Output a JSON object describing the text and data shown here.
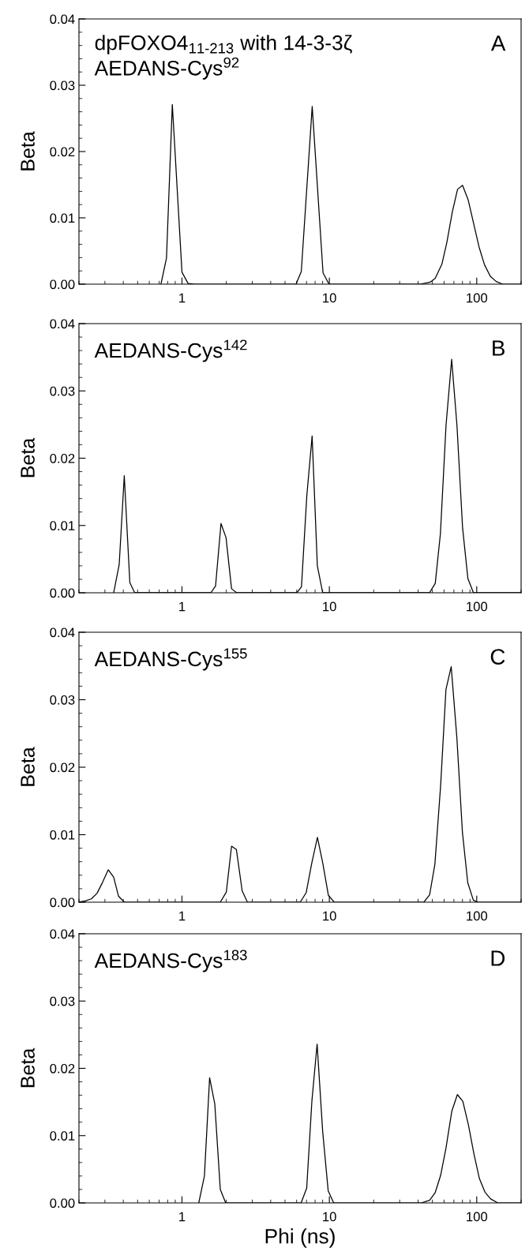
{
  "chart_data": [
    {
      "type": "line",
      "ylabel": "Beta",
      "annotations": [
        "A",
        "dpFOXO4$_{11-213}$ with 14-3-3ζ",
        "AEDANS-Cys$^{92}$"
      ],
      "xlim": [
        0.2,
        200
      ],
      "ylim": [
        0,
        0.04
      ],
      "xticks": [
        1,
        10,
        100
      ],
      "yticks": [
        {
          "value": 0,
          "label": "0.00"
        },
        {
          "value": 0.01,
          "label": "0.01"
        },
        {
          "value": 0.02,
          "label": "0.02"
        },
        {
          "value": 0.03,
          "label": "0.03"
        },
        {
          "value": 0.04,
          "label": "0.04"
        }
      ],
      "log": "x",
      "grid": false,
      "legend": false,
      "marker": "none",
      "line_style": "solid",
      "series": [
        {
          "color": "#000000",
          "x": [
            0.72,
            0.785,
            0.86,
            1.0,
            1.1,
            1.22,
            5.94,
            6.45,
            7.65,
            9.06,
            9.95,
            41.4,
            48.4,
            52.3,
            58,
            62.7,
            68.3,
            74.1,
            80.1,
            87.5,
            95.4,
            103.7,
            113,
            123.6,
            135.5,
            150,
            200
          ],
          "values": [
            0,
            0.0039,
            0.0271,
            0.0018,
            0.0001,
            0,
            0,
            0.0019,
            0.0268,
            0.0017,
            0,
            0,
            0.0003,
            0.0009,
            0.003,
            0.0063,
            0.0109,
            0.0143,
            0.0149,
            0.0127,
            0.0091,
            0.0056,
            0.0029,
            0.0012,
            0.0004,
            0,
            0
          ]
        }
      ]
    },
    {
      "type": "line",
      "ylabel": "Beta",
      "annotations": [
        "B",
        "AEDANS-Cys$^{142}$"
      ],
      "xlim": [
        0.2,
        200
      ],
      "ylim": [
        0,
        0.04
      ],
      "xticks": [
        1,
        10,
        100
      ],
      "yticks": [
        {
          "value": 0,
          "label": "0.00"
        },
        {
          "value": 0.01,
          "label": "0.01"
        },
        {
          "value": 0.02,
          "label": "0.02"
        },
        {
          "value": 0.03,
          "label": "0.03"
        },
        {
          "value": 0.04,
          "label": "0.04"
        }
      ],
      "log": "x",
      "grid": false,
      "legend": false,
      "marker": "none",
      "line_style": "solid",
      "series": [
        {
          "color": "#000000",
          "x": [
            0.344,
            0.375,
            0.406,
            0.443,
            0.478,
            1.57,
            1.69,
            1.84,
            1.99,
            2.17,
            2.35,
            6.02,
            6.47,
            7.03,
            7.64,
            8.29,
            9.01,
            47.8,
            52.3,
            56.7,
            61.9,
            67.6,
            73.4,
            80.2,
            87.1,
            95,
            200
          ],
          "values": [
            0,
            0.0042,
            0.0174,
            0.0015,
            0,
            0,
            0.001,
            0.0103,
            0.0082,
            0.0006,
            0,
            0,
            0.0009,
            0.0144,
            0.0233,
            0.004,
            0,
            0,
            0.0014,
            0.0088,
            0.0249,
            0.0347,
            0.0249,
            0.0096,
            0.0021,
            0,
            0
          ]
        }
      ]
    },
    {
      "type": "line",
      "ylabel": "Beta",
      "annotations": [
        "C",
        "AEDANS-Cys$^{155}$"
      ],
      "xlim": [
        0.2,
        200
      ],
      "ylim": [
        0,
        0.04
      ],
      "xticks": [
        1,
        10,
        100
      ],
      "yticks": [
        {
          "value": 0,
          "label": "0.00"
        },
        {
          "value": 0.01,
          "label": "0.01"
        },
        {
          "value": 0.02,
          "label": "0.02"
        },
        {
          "value": 0.03,
          "label": "0.03"
        },
        {
          "value": 0.04,
          "label": "0.04"
        }
      ],
      "log": "x",
      "grid": false,
      "legend": false,
      "marker": "none",
      "line_style": "solid",
      "series": [
        {
          "color": "#000000",
          "x": [
            0.2,
            0.221,
            0.243,
            0.265,
            0.29,
            0.316,
            0.344,
            0.371,
            0.406,
            1.82,
            2.0,
            2.17,
            2.34,
            2.56,
            2.78,
            6.34,
            6.96,
            7.6,
            8.3,
            9.02,
            9.85,
            10.8,
            43.8,
            47.9,
            52,
            56.9,
            61.8,
            67.1,
            73.3,
            80,
            86.9,
            94.8,
            101.6,
            200
          ],
          "values": [
            0,
            0.0002,
            0.0005,
            0.0013,
            0.003,
            0.0048,
            0.0037,
            0.0009,
            0,
            0,
            0.0015,
            0.0083,
            0.0078,
            0.0017,
            0,
            0,
            0.0014,
            0.0058,
            0.0096,
            0.0058,
            0.001,
            0,
            0,
            0.0011,
            0.0056,
            0.0173,
            0.0315,
            0.0349,
            0.0244,
            0.0103,
            0.0029,
            0.0003,
            0,
            0
          ]
        }
      ]
    },
    {
      "type": "line",
      "xlabel": "Phi (ns)",
      "ylabel": "Beta",
      "annotations": [
        "D",
        "AEDANS-Cys$^{183}$"
      ],
      "xlim": [
        0.2,
        200
      ],
      "ylim": [
        0,
        0.04
      ],
      "xticks": [
        1,
        10,
        100
      ],
      "yticks": [
        {
          "value": 0,
          "label": "0.00"
        },
        {
          "value": 0.01,
          "label": "0.01"
        },
        {
          "value": 0.02,
          "label": "0.02"
        },
        {
          "value": 0.03,
          "label": "0.03"
        },
        {
          "value": 0.04,
          "label": "0.04"
        }
      ],
      "log": "x",
      "grid": false,
      "legend": false,
      "marker": "none",
      "line_style": "solid",
      "series": [
        {
          "color": "#000000",
          "x": [
            1.3,
            1.42,
            1.54,
            1.67,
            1.82,
            1.98,
            6.43,
            7.02,
            7.61,
            8.26,
            9.01,
            9.82,
            10.7,
            42.1,
            47.9,
            52.2,
            56.9,
            61.8,
            67.7,
            73.9,
            80.5,
            87.8,
            95.7,
            104.3,
            113.7,
            124.1,
            139,
            200
          ],
          "values": [
            0,
            0.004,
            0.0186,
            0.0147,
            0.002,
            0,
            0,
            0.0022,
            0.0151,
            0.0236,
            0.0106,
            0.0018,
            0,
            0,
            0.0004,
            0.0015,
            0.0041,
            0.0081,
            0.0136,
            0.0161,
            0.0151,
            0.0116,
            0.0073,
            0.0036,
            0.0016,
            0.0006,
            0,
            0
          ]
        }
      ]
    }
  ]
}
